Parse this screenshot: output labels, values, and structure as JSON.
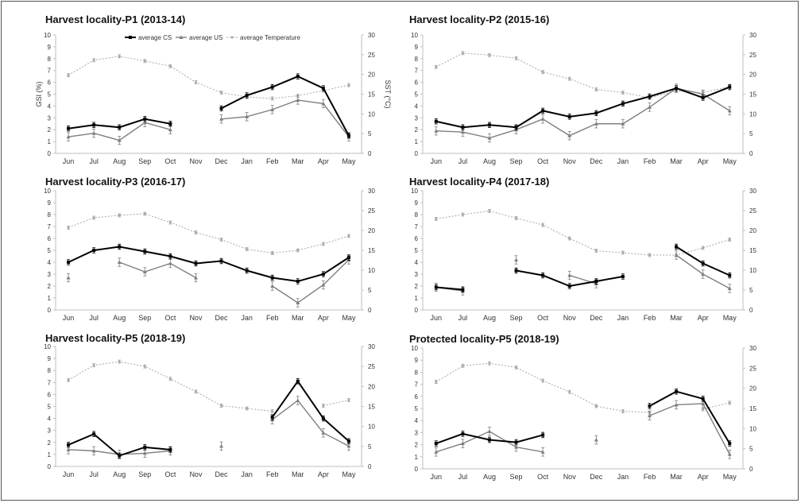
{
  "legend": {
    "cs": "average CS",
    "us": "average US",
    "temp": "average Temperature"
  },
  "axis_labels": {
    "left": "GSI (%)",
    "right": "SST (°C)"
  },
  "months": [
    "Jun",
    "Jul",
    "Aug",
    "Sep",
    "Oct",
    "Nov",
    "Dec",
    "Jan",
    "Feb",
    "Mar",
    "Apr",
    "May"
  ],
  "gsi_ticks": [
    "0",
    "1",
    "2",
    "3",
    "4",
    "5",
    "6",
    "7",
    "8",
    "9",
    "10"
  ],
  "sst_ticks": [
    "0",
    "5",
    "10",
    "15",
    "20",
    "25",
    "30"
  ],
  "colors": {
    "cs": "#000000",
    "us": "#7f7f7f",
    "temp": "#a6a6a6",
    "axis": "#bfbfbf"
  },
  "chart_data": [
    {
      "type": "line",
      "title": "Harvest locality-P1 (2013-14)",
      "ylabel": "GSI (%)",
      "y2label": "SST (°C)",
      "ylim": [
        0,
        10
      ],
      "y2lim": [
        0,
        30
      ],
      "categories": [
        "Jun",
        "Jul",
        "Aug",
        "Sep",
        "Oct",
        "Nov",
        "Dec",
        "Jan",
        "Feb",
        "Mar",
        "Apr",
        "May"
      ],
      "series": [
        {
          "name": "average CS",
          "axis": "left",
          "values": [
            2.1,
            2.4,
            2.2,
            2.9,
            2.5,
            null,
            3.8,
            4.9,
            5.6,
            6.5,
            5.5,
            1.5
          ]
        },
        {
          "name": "average US",
          "axis": "left",
          "values": [
            1.4,
            1.7,
            1.1,
            2.6,
            2.0,
            null,
            2.9,
            3.1,
            3.7,
            4.5,
            4.2,
            1.4
          ]
        },
        {
          "name": "average Temperature",
          "axis": "right",
          "values": [
            19.8,
            23.6,
            24.6,
            23.4,
            22.1,
            18.0,
            15.4,
            14.3,
            13.9,
            14.6,
            15.9,
            17.3
          ]
        }
      ]
    },
    {
      "type": "line",
      "title": "Harvest locality-P2 (2015-16)",
      "ylim": [
        0,
        10
      ],
      "y2lim": [
        0,
        30
      ],
      "categories": [
        "Jun",
        "Jul",
        "Aug",
        "Sep",
        "Oct",
        "Nov",
        "Dec",
        "Jan",
        "Feb",
        "Mar",
        "Apr",
        "May"
      ],
      "series": [
        {
          "name": "average CS",
          "axis": "left",
          "values": [
            2.7,
            2.2,
            2.4,
            2.2,
            3.6,
            3.1,
            3.4,
            4.2,
            4.8,
            5.5,
            4.7,
            5.6
          ]
        },
        {
          "name": "average US",
          "axis": "left",
          "values": [
            1.9,
            1.8,
            1.3,
            2.0,
            2.9,
            1.5,
            2.5,
            2.5,
            3.9,
            5.5,
            5.0,
            3.6
          ]
        },
        {
          "name": "average Temperature",
          "axis": "right",
          "values": [
            21.9,
            25.4,
            24.9,
            24.1,
            20.6,
            18.9,
            16.2,
            15.4,
            14.1,
            15.8,
            15.4,
            16.9
          ]
        }
      ]
    },
    {
      "type": "line",
      "title": "Harvest locality-P3 (2016-17)",
      "ylim": [
        0,
        10
      ],
      "y2lim": [
        0,
        30
      ],
      "categories": [
        "Jun",
        "Jul",
        "Aug",
        "Sep",
        "Oct",
        "Nov",
        "Dec",
        "Jan",
        "Feb",
        "Mar",
        "Apr",
        "May"
      ],
      "series": [
        {
          "name": "average CS",
          "axis": "left",
          "values": [
            4.0,
            5.0,
            5.3,
            4.9,
            4.5,
            3.9,
            4.1,
            3.3,
            2.7,
            2.4,
            3.0,
            4.4
          ]
        },
        {
          "name": "average US",
          "axis": "left",
          "values": [
            2.7,
            null,
            4.0,
            3.2,
            3.9,
            2.7,
            null,
            null,
            2.0,
            0.6,
            2.1,
            4.2
          ]
        },
        {
          "name": "average Temperature",
          "axis": "right",
          "values": [
            20.7,
            23.2,
            23.8,
            24.2,
            22.0,
            19.5,
            17.7,
            15.3,
            14.3,
            15.0,
            16.6,
            18.6
          ]
        }
      ]
    },
    {
      "type": "line",
      "title": "Harvest locality-P4 (2017-18)",
      "ylim": [
        0,
        10
      ],
      "y2lim": [
        0,
        30
      ],
      "categories": [
        "Jun",
        "Jul",
        "Aug",
        "Sep",
        "Oct",
        "Nov",
        "Dec",
        "Jan",
        "Feb",
        "Mar",
        "Apr",
        "May"
      ],
      "series": [
        {
          "name": "average CS",
          "axis": "left",
          "values": [
            1.9,
            1.7,
            null,
            3.3,
            2.9,
            2.0,
            2.4,
            2.8,
            null,
            5.3,
            3.9,
            2.9
          ]
        },
        {
          "name": "average US",
          "axis": "left",
          "values": [
            1.9,
            1.6,
            null,
            4.2,
            null,
            2.9,
            2.2,
            null,
            null,
            4.6,
            3.0,
            1.8
          ]
        },
        {
          "name": "average Temperature",
          "axis": "right",
          "values": [
            22.9,
            24.0,
            24.9,
            23.1,
            21.4,
            18.0,
            14.9,
            14.4,
            13.8,
            13.8,
            15.6,
            17.7
          ]
        }
      ]
    },
    {
      "type": "line",
      "title": "Harvest locality-P5 (2018-19)",
      "ylim": [
        0,
        10
      ],
      "y2lim": [
        0,
        30
      ],
      "categories": [
        "Jun",
        "Jul",
        "Aug",
        "Sep",
        "Oct",
        "Nov",
        "Dec",
        "Jan",
        "Feb",
        "Mar",
        "Apr",
        "May"
      ],
      "series": [
        {
          "name": "average CS",
          "axis": "left",
          "values": [
            1.8,
            2.7,
            0.9,
            1.6,
            1.4,
            null,
            null,
            null,
            4.1,
            7.1,
            4.0,
            2.1
          ]
        },
        {
          "name": "average US",
          "axis": "left",
          "values": [
            1.4,
            1.3,
            1.0,
            1.1,
            1.3,
            null,
            1.7,
            null,
            3.9,
            5.5,
            2.8,
            1.7
          ]
        },
        {
          "name": "average Temperature",
          "axis": "right",
          "values": [
            21.6,
            25.3,
            26.2,
            25.0,
            21.9,
            18.7,
            15.2,
            14.5,
            13.8,
            null,
            15.2,
            16.6
          ]
        }
      ]
    },
    {
      "type": "line",
      "title": "Protected locality-P5 (2018-19)",
      "ylim": [
        0,
        10
      ],
      "y2lim": [
        0,
        30
      ],
      "categories": [
        "Jun",
        "Jul",
        "Aug",
        "Sep",
        "Oct",
        "Nov",
        "Dec",
        "Jan",
        "Feb",
        "Mar",
        "Apr",
        "May"
      ],
      "series": [
        {
          "name": "average CS",
          "axis": "left",
          "values": [
            2.1,
            2.9,
            2.4,
            2.2,
            2.8,
            null,
            null,
            null,
            5.2,
            6.4,
            5.8,
            2.1
          ]
        },
        {
          "name": "average US",
          "axis": "left",
          "values": [
            1.4,
            2.1,
            3.1,
            1.8,
            1.4,
            null,
            2.4,
            null,
            4.4,
            5.3,
            5.4,
            1.2
          ]
        },
        {
          "name": "average Temperature",
          "axis": "right",
          "values": [
            21.6,
            25.6,
            26.2,
            25.2,
            21.9,
            19.1,
            15.6,
            14.3,
            14.0,
            null,
            14.8,
            16.4
          ]
        }
      ]
    }
  ]
}
